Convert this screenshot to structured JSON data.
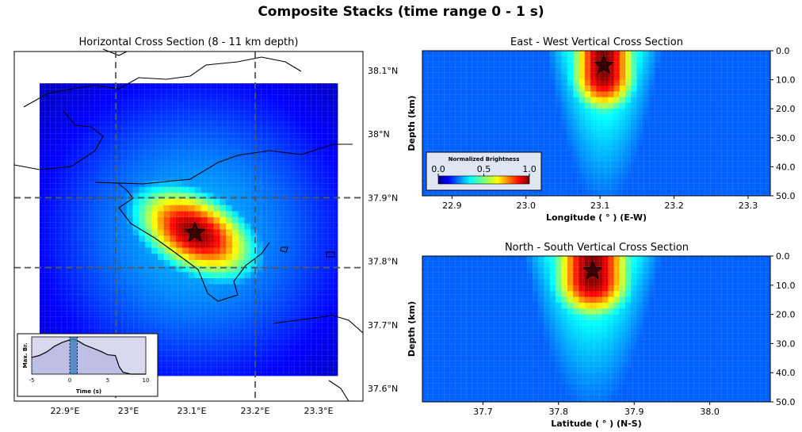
{
  "suptitle": "Composite Stacks (time range 0 - 1 s)",
  "chart_data": [
    {
      "id": "horizontal",
      "type": "heatmap",
      "title": "Horizontal Cross Section (8 - 11 km depth)",
      "xlim": [
        22.82,
        23.37
      ],
      "ylim": [
        37.58,
        38.13
      ],
      "grid_extent_x": [
        22.86,
        23.33
      ],
      "grid_extent_y": [
        37.62,
        38.08
      ],
      "xticks": [
        "22.9°E",
        "23°E",
        "23.1°E",
        "23.2°E",
        "23.3°E"
      ],
      "xtick_values": [
        22.9,
        23.0,
        23.1,
        23.2,
        23.3
      ],
      "yticks": [
        "37.6°N",
        "37.7°N",
        "37.8°N",
        "37.9°N",
        "38°N",
        "38.1°N"
      ],
      "ytick_values": [
        37.6,
        37.7,
        37.8,
        37.9,
        38.0,
        38.1
      ],
      "event_lon": 23.105,
      "event_lat": 37.845,
      "crosshair_lon": [
        22.98,
        23.2
      ],
      "crosshair_lat": [
        37.79,
        37.9
      ],
      "colormap": "jet",
      "peak_value": 1.0
    },
    {
      "id": "ew",
      "type": "heatmap",
      "title": "East - West Vertical Cross Section",
      "xlabel": "Longitude ($^\\circ$) (E-W)",
      "ylabel": "Depth (km)",
      "xlim": [
        22.86,
        23.33
      ],
      "ylim": [
        50,
        0
      ],
      "xticks": [
        "22.9",
        "23.0",
        "23.1",
        "23.2",
        "23.3"
      ],
      "xtick_values": [
        22.9,
        23.0,
        23.1,
        23.2,
        23.3
      ],
      "yticks": [
        "0.0",
        "10.0",
        "20.0",
        "30.0",
        "40.0",
        "50.0"
      ],
      "ytick_values": [
        0,
        10,
        20,
        30,
        40,
        50
      ],
      "event_x": 23.105,
      "event_depth": 5,
      "colorbar": {
        "title": "Normalized Brightness",
        "ticks": [
          "0.0",
          "0.5",
          "1.0"
        ],
        "placement": "lower-left"
      }
    },
    {
      "id": "ns",
      "type": "heatmap",
      "title": "North - South Vertical Cross Section",
      "xlabel": "Latitude ($^\\circ$) (N-S)",
      "ylabel": "Depth (km)",
      "xlim": [
        37.62,
        38.08
      ],
      "ylim": [
        50,
        0
      ],
      "xticks": [
        "37.7",
        "37.8",
        "37.9",
        "38.0"
      ],
      "xtick_values": [
        37.7,
        37.8,
        37.9,
        38.0
      ],
      "yticks": [
        "0.0",
        "10.0",
        "20.0",
        "30.0",
        "40.0",
        "50.0"
      ],
      "ytick_values": [
        0,
        10,
        20,
        30,
        40,
        50
      ],
      "event_x": 37.845,
      "event_depth": 5
    },
    {
      "id": "inset",
      "type": "area",
      "ylabel": "Max. Br.",
      "xlabel": "Time (s)",
      "xlim": [
        -5,
        10
      ],
      "xticks": [
        "-5",
        "0",
        "5",
        "10"
      ],
      "xtick_values": [
        -5,
        0,
        5,
        10
      ],
      "highlight_range": [
        0,
        1
      ],
      "x": [
        -5,
        -4,
        -3,
        -2,
        -1,
        0,
        0.5,
        1,
        2,
        3,
        4,
        5,
        6,
        6.5,
        7,
        8,
        10
      ],
      "y": [
        0.45,
        0.5,
        0.6,
        0.75,
        0.85,
        0.92,
        0.95,
        0.9,
        0.78,
        0.7,
        0.62,
        0.52,
        0.5,
        0.2,
        0.05,
        0.0,
        0.0
      ]
    }
  ]
}
